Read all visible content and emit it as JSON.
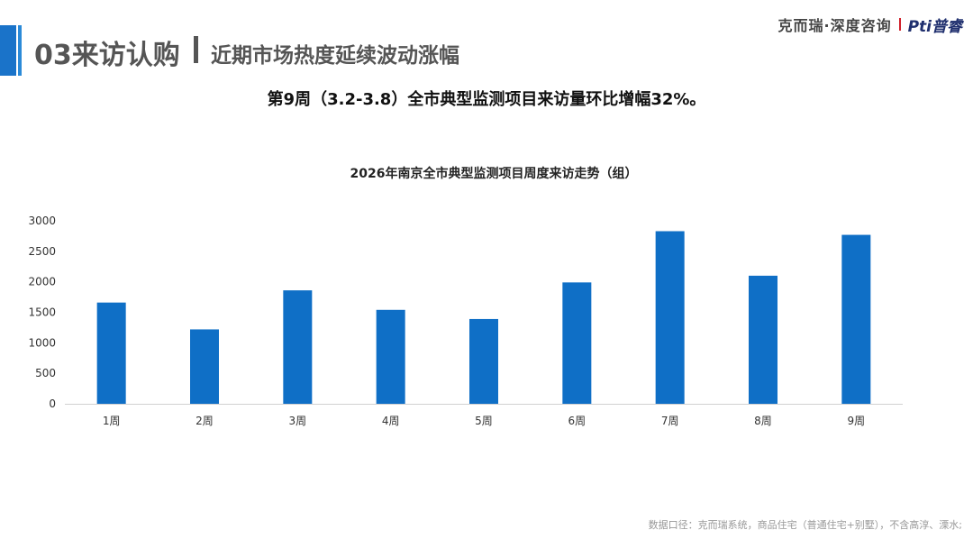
{
  "header": {
    "title": "03来访认购",
    "subtitle": "近期市场热度延续波动涨幅",
    "brand_name": "克而瑞·深度咨询",
    "brand_logo": "Pti普睿"
  },
  "headline": "第9周（3.2-3.8）全市典型监测项目来访量环比增幅32%。",
  "footnote": "数据口径：克而瑞系统，商品住宅（普通住宅+别墅），不含高淳、溧水;",
  "colors": {
    "accent": "#1a73c9",
    "bar": "#0f6fc6"
  },
  "chart_data": {
    "type": "bar",
    "title": "2026年南京全市典型监测项目周度来访走势（组）",
    "categories": [
      "1周",
      "2周",
      "3周",
      "4周",
      "5周",
      "6周",
      "7周",
      "8周",
      "9周"
    ],
    "values": [
      1660,
      1220,
      1860,
      1540,
      1390,
      1990,
      2830,
      2100,
      2770
    ],
    "ylim": [
      0,
      3000
    ],
    "yticks": [
      "0",
      "500",
      "1000",
      "1500",
      "2000",
      "2500",
      "3000"
    ],
    "grid": false,
    "legend": "none"
  }
}
